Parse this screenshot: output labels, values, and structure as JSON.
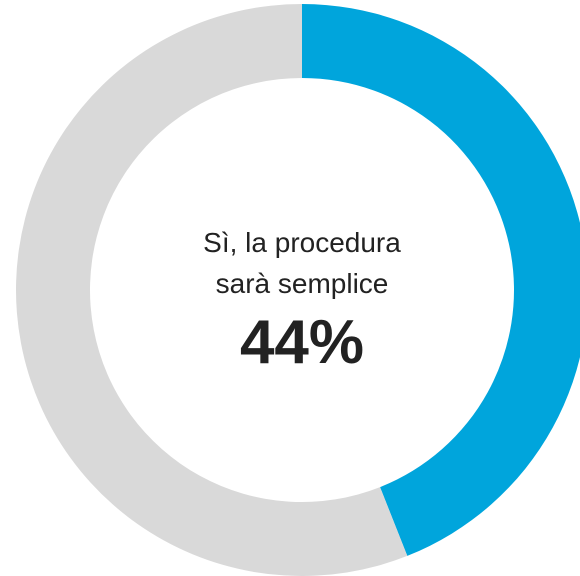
{
  "chart_data": {
    "type": "donut",
    "categories": [
      "Sì, la procedura sarà semplice",
      null
    ],
    "values": [
      44,
      56
    ],
    "value_labels": [
      "44%",
      null
    ],
    "colors": [
      "#00a5dc",
      "#d9d9d9"
    ]
  }
}
